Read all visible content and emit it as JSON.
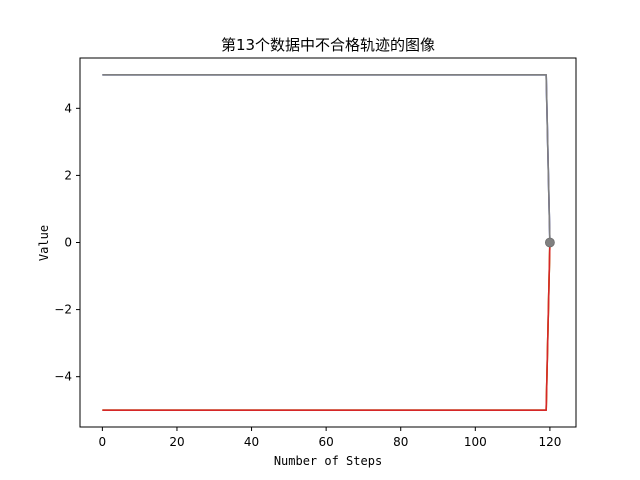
{
  "chart_data": {
    "type": "line",
    "title": "第13个数据中不合格轨迹的图像",
    "xlabel": "Number of Steps",
    "ylabel": "Value",
    "xlim": [
      -6,
      127
    ],
    "ylim": [
      -5.5,
      5.5
    ],
    "xticks": [
      0,
      20,
      40,
      60,
      80,
      100,
      120
    ],
    "yticks": [
      -4,
      -2,
      0,
      2,
      4
    ],
    "xtick_labels": [
      "0",
      "20",
      "40",
      "60",
      "80",
      "100",
      "120"
    ],
    "ytick_labels": [
      "−4",
      "−2",
      "0",
      "2",
      "4"
    ],
    "grid": false,
    "series": [
      {
        "color": "#1f77b4",
        "x": [
          0,
          119,
          120
        ],
        "y": [
          5,
          5,
          0
        ]
      },
      {
        "color": "#2ca02c",
        "x": [
          0,
          119,
          120
        ],
        "y": [
          -5,
          -5,
          0
        ]
      },
      {
        "color": "#ff7f0e",
        "x": [
          0,
          119,
          120
        ],
        "y": [
          -5,
          -5,
          0
        ]
      },
      {
        "color": "#d62728",
        "x": [
          0,
          119,
          120
        ],
        "y": [
          -5,
          -5,
          0
        ]
      },
      {
        "color": "#9467bd",
        "x": [
          0,
          119,
          120
        ],
        "y": [
          5,
          5,
          0
        ]
      },
      {
        "color": "#7f7f7f",
        "x": [
          0,
          119,
          120
        ],
        "y": [
          5,
          5,
          0
        ]
      }
    ],
    "end_marker": {
      "x": 120,
      "y": 0,
      "color": "#808080"
    }
  }
}
